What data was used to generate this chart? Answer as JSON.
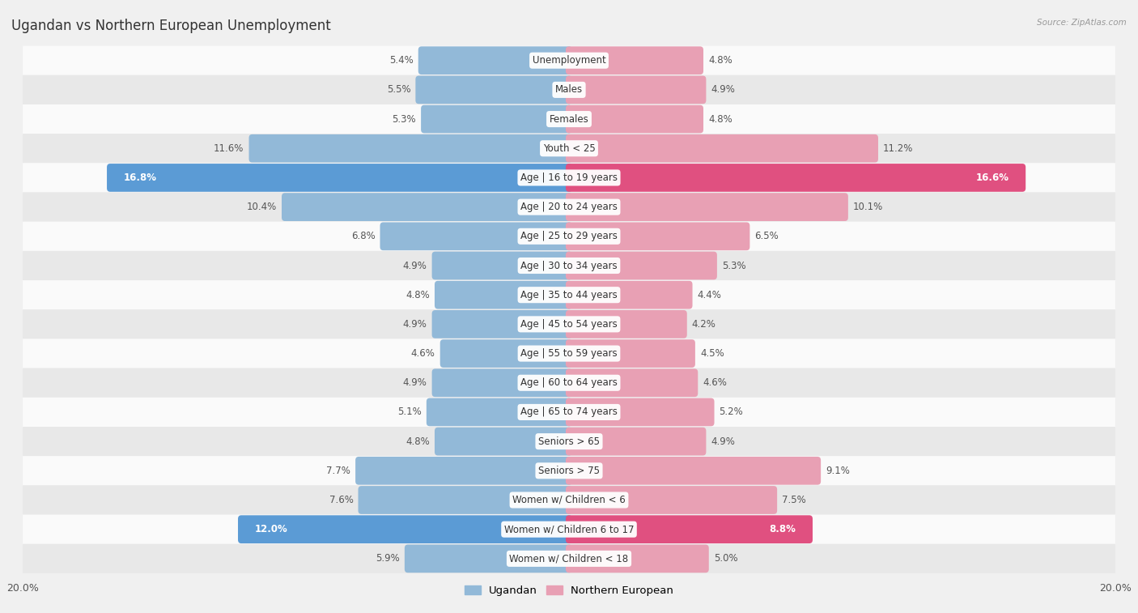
{
  "title": "Ugandan vs Northern European Unemployment",
  "source": "Source: ZipAtlas.com",
  "categories": [
    "Unemployment",
    "Males",
    "Females",
    "Youth < 25",
    "Age | 16 to 19 years",
    "Age | 20 to 24 years",
    "Age | 25 to 29 years",
    "Age | 30 to 34 years",
    "Age | 35 to 44 years",
    "Age | 45 to 54 years",
    "Age | 55 to 59 years",
    "Age | 60 to 64 years",
    "Age | 65 to 74 years",
    "Seniors > 65",
    "Seniors > 75",
    "Women w/ Children < 6",
    "Women w/ Children 6 to 17",
    "Women w/ Children < 18"
  ],
  "ugandan": [
    5.4,
    5.5,
    5.3,
    11.6,
    16.8,
    10.4,
    6.8,
    4.9,
    4.8,
    4.9,
    4.6,
    4.9,
    5.1,
    4.8,
    7.7,
    7.6,
    12.0,
    5.9
  ],
  "northern_european": [
    4.8,
    4.9,
    4.8,
    11.2,
    16.6,
    10.1,
    6.5,
    5.3,
    4.4,
    4.2,
    4.5,
    4.6,
    5.2,
    4.9,
    9.1,
    7.5,
    8.8,
    5.0
  ],
  "ugandan_color": "#92b9d8",
  "northern_european_color": "#e8a0b4",
  "ugandan_highlight_color": "#5b9bd5",
  "northern_european_highlight_color": "#e05080",
  "highlight_rows": [
    4,
    16
  ],
  "bar_height": 0.72,
  "xlim": 20.0,
  "bg_color": "#f0f0f0",
  "row_bg_light": "#fafafa",
  "row_bg_dark": "#e8e8e8",
  "legend_ugandan": "Ugandan",
  "legend_northern_european": "Northern European",
  "title_fontsize": 12,
  "label_fontsize": 8.5,
  "value_fontsize": 8.5,
  "axis_label_fontsize": 9
}
